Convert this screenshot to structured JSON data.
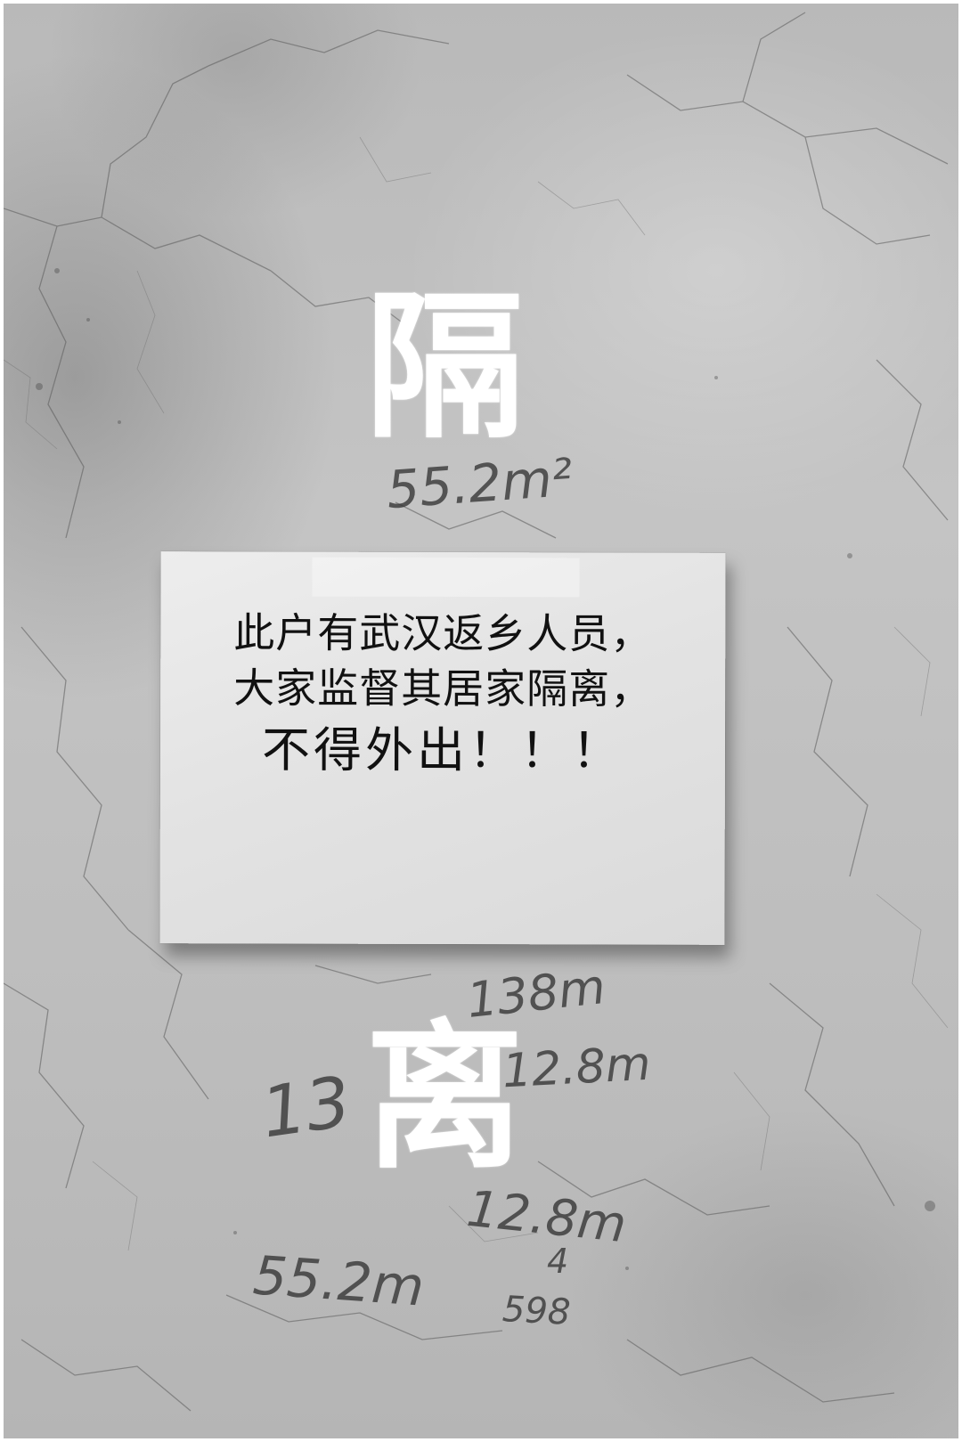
{
  "poster": {
    "top_character": "隔",
    "bottom_character": "离"
  },
  "notice": {
    "line1": "此户有武汉返乡人员，",
    "line2": "大家监督其居家隔离，",
    "line3": "不得外出！！！"
  },
  "wall_markings": {
    "m1": "55.2m²",
    "m2": "138m",
    "m3": "12.8m",
    "m4": "13",
    "m5": "12.8m",
    "m6": "4",
    "m7": "55.2m",
    "m8": "598"
  },
  "colors": {
    "wall": "#bdbdbd",
    "paper": "#e5e5e5",
    "ink": "#111111",
    "overlay_text": "#ffffff"
  }
}
